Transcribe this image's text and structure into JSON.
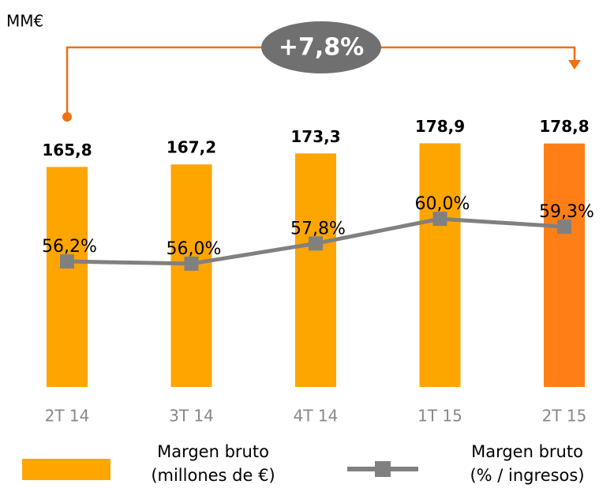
{
  "chart_data": {
    "type": "bar",
    "unit_label": "MM€",
    "annotation": "+7,8%",
    "categories": [
      "2T 14",
      "3T 14",
      "4T 14",
      "1T 15",
      "2T 15"
    ],
    "series": [
      {
        "name": "Margen bruto\n(millones de €)",
        "type": "bar",
        "color": "#ffa500",
        "colors": [
          "#ffa500",
          "#ffa500",
          "#ffa500",
          "#ffa500",
          "#ff7f16"
        ],
        "values": [
          165.8,
          167.2,
          173.3,
          178.9,
          178.8
        ],
        "value_labels": [
          "165,8",
          "167,2",
          "173,3",
          "178,9",
          "178,8"
        ]
      },
      {
        "name": "Margen bruto\n(% / ingresos)",
        "type": "line",
        "axis": "y2",
        "color": "#808080",
        "values": [
          56.2,
          56.0,
          57.8,
          60.0,
          59.3
        ],
        "value_labels": [
          "56,2%",
          "56,0%",
          "57,8%",
          "60,0%",
          "59,3%"
        ]
      }
    ],
    "ylim": [
      44,
      232
    ],
    "y2lim": [
      45,
      75.3
    ]
  }
}
